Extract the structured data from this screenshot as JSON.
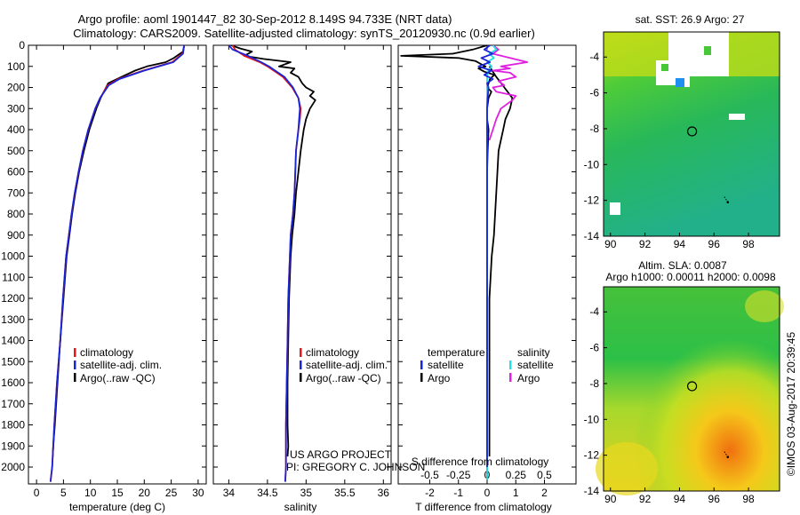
{
  "header": {
    "title_line1": "Argo profile: aoml 1901447_82 30-Sep-2012 8.149S 94.733E (NRT data)",
    "title_line2": "Climatology: CARS2009. Satellite-adjusted climatology: synTS_20120930.nc (0.9d earlier)"
  },
  "colors": {
    "climatology": "#e8161a",
    "satellite_adj": "#1a24d8",
    "argo": "#000000",
    "temp_satellite": "#1a24d8",
    "sal_satellite": "#22e0e8",
    "sal_argo": "#e020e0"
  },
  "depth_axis": {
    "ticks": [
      0,
      100,
      200,
      300,
      400,
      500,
      600,
      700,
      800,
      900,
      1000,
      1100,
      1200,
      1300,
      1400,
      1500,
      1600,
      1700,
      1800,
      1900,
      2000
    ],
    "ylim": [
      0,
      2080
    ]
  },
  "legend": {
    "climatology": "climatology",
    "satellite_adj": "satellite-adj. clim.",
    "argo": "Argo(..raw -QC)",
    "diff_temp_header": "temperature",
    "diff_sal_header": "salinity",
    "diff_satellite": "satellite",
    "diff_argo": "Argo"
  },
  "credits": {
    "line1": "US ARGO PROJECT",
    "line2": "PI: GREGORY C. JOHNSON",
    "imos": "©IMOS 03-Aug-2017 20:39:45"
  },
  "chart_data": [
    {
      "id": "temperature",
      "type": "line",
      "xlabel": "temperature (deg C)",
      "ylabel": "",
      "xlim": [
        -1.5,
        31.5
      ],
      "ylim": [
        0,
        2080
      ],
      "xticks": [
        0,
        5,
        10,
        15,
        20,
        25,
        30
      ],
      "series": [
        {
          "name": "climatology",
          "color_key": "climatology",
          "depth": [
            0,
            40,
            80,
            120,
            160,
            190,
            250,
            300,
            400,
            500,
            600,
            700,
            800,
            900,
            1000,
            1200,
            1400,
            1600,
            1800,
            2000,
            2070
          ],
          "values": [
            27.4,
            27.1,
            25.2,
            19.8,
            15.2,
            13.2,
            11.8,
            10.9,
            9.6,
            8.6,
            7.8,
            7.1,
            6.5,
            6.0,
            5.5,
            4.9,
            4.4,
            3.8,
            3.3,
            2.9,
            2.6
          ]
        },
        {
          "name": "satellite-adj. clim.",
          "color_key": "satellite_adj",
          "depth": [
            0,
            40,
            80,
            120,
            160,
            190,
            250,
            300,
            400,
            500,
            600,
            700,
            800,
            900,
            1000,
            1200,
            1400,
            1600,
            1800,
            2000,
            2070
          ],
          "values": [
            27.4,
            27.2,
            25.4,
            20.0,
            15.4,
            13.4,
            11.8,
            10.9,
            9.6,
            8.6,
            7.8,
            7.1,
            6.5,
            6.0,
            5.5,
            4.9,
            4.4,
            3.8,
            3.3,
            2.9,
            2.6
          ]
        },
        {
          "name": "Argo(..raw -QC)",
          "color_key": "argo",
          "depth": [
            0,
            30,
            60,
            80,
            100,
            120,
            150,
            180,
            250,
            300,
            400,
            500,
            600,
            700,
            800,
            900,
            1000,
            1200,
            1400,
            1600,
            1800,
            1900,
            1950
          ],
          "values": [
            27.4,
            27.2,
            25.5,
            24.0,
            20.5,
            18.3,
            15.8,
            13.3,
            11.9,
            11.1,
            9.8,
            8.8,
            7.9,
            7.2,
            6.6,
            6.1,
            5.6,
            5.0,
            4.4,
            3.9,
            3.4,
            3.1,
            3.0
          ]
        }
      ]
    },
    {
      "id": "salinity",
      "type": "line",
      "xlabel": "salinity",
      "ylabel": "",
      "xlim": [
        33.8,
        36.1
      ],
      "ylim": [
        0,
        2080
      ],
      "xticks": [
        34,
        34.5,
        35,
        35.5,
        36
      ],
      "xtick_labels": [
        "34",
        "34.5",
        "35",
        "35.5",
        "36"
      ],
      "series": [
        {
          "name": "climatology",
          "color_key": "climatology",
          "depth": [
            0,
            20,
            50,
            80,
            100,
            150,
            200,
            250,
            300,
            350,
            400,
            500,
            600,
            700,
            800,
            900,
            1000,
            1200,
            1400,
            1600,
            1800,
            2000,
            2070
          ],
          "values": [
            34.05,
            34.08,
            34.2,
            34.4,
            34.5,
            34.7,
            34.82,
            34.9,
            34.93,
            34.92,
            34.9,
            34.87,
            34.86,
            34.85,
            34.83,
            34.8,
            34.79,
            34.77,
            34.76,
            34.75,
            34.74,
            34.74,
            34.73
          ]
        },
        {
          "name": "satellite-adj. clim.",
          "color_key": "satellite_adj",
          "depth": [
            0,
            20,
            50,
            80,
            100,
            150,
            200,
            250,
            300,
            350,
            400,
            500,
            600,
            700,
            800,
            900,
            1000,
            1200,
            1400,
            1600,
            1800,
            2000,
            2070
          ],
          "values": [
            34.0,
            34.05,
            34.25,
            34.42,
            34.52,
            34.72,
            34.83,
            34.9,
            34.92,
            34.91,
            34.9,
            34.87,
            34.86,
            34.85,
            34.83,
            34.8,
            34.79,
            34.77,
            34.76,
            34.75,
            34.74,
            34.74,
            34.73
          ]
        },
        {
          "name": "Argo(..raw -QC)",
          "color_key": "argo",
          "depth": [
            0,
            15,
            30,
            50,
            65,
            80,
            100,
            110,
            130,
            150,
            180,
            200,
            220,
            240,
            260,
            300,
            350,
            400,
            500,
            600,
            700,
            800,
            900,
            1000,
            1200,
            1400,
            1600,
            1800,
            1900,
            1950
          ],
          "values": [
            34.03,
            34.15,
            34.3,
            34.2,
            34.45,
            34.8,
            34.65,
            34.85,
            34.8,
            34.9,
            34.95,
            35.0,
            35.1,
            35.05,
            35.12,
            35.05,
            35.0,
            34.97,
            34.93,
            34.9,
            34.87,
            34.85,
            34.82,
            34.8,
            34.78,
            34.77,
            34.76,
            34.76,
            34.77,
            34.76
          ]
        }
      ]
    },
    {
      "id": "difference",
      "type": "line",
      "xlabel": "T difference from climatology",
      "x2label": "S difference from climatology",
      "ylabel": "",
      "xlim": [
        -3.1,
        3.1
      ],
      "x2lim": [
        -0.775,
        0.775
      ],
      "ylim": [
        0,
        2080
      ],
      "xticks": [
        -2,
        -1,
        0,
        1,
        2
      ],
      "x2ticks": [
        -0.5,
        -0.25,
        0,
        0.25,
        0.5
      ],
      "x2tick_labels": [
        "-0.5",
        "-0.25",
        "0",
        "0.25",
        "0.5"
      ],
      "series": [
        {
          "name": "temperature satellite",
          "color_key": "temp_satellite",
          "axis": "T",
          "depth": [
            0,
            20,
            40,
            60,
            80,
            100,
            120,
            140,
            160,
            180,
            200,
            250,
            300,
            400,
            600,
            800,
            1000,
            1200,
            1500,
            1800,
            2000
          ],
          "values": [
            0.1,
            -0.1,
            0.2,
            -0.2,
            0.1,
            -0.3,
            0.15,
            -0.1,
            0.2,
            0.0,
            0.05,
            0.02,
            0.0,
            0.0,
            0.0,
            0.0,
            0.0,
            0.0,
            0.0,
            0.0,
            0.0
          ]
        },
        {
          "name": "temperature Argo",
          "color_key": "argo",
          "axis": "T",
          "depth": [
            0,
            20,
            40,
            50,
            60,
            75,
            90,
            100,
            110,
            125,
            140,
            160,
            180,
            200,
            220,
            250,
            300,
            350,
            400,
            500,
            600,
            700,
            800,
            900,
            1000,
            1200,
            1400,
            1600,
            1800,
            2000,
            2050
          ],
          "values": [
            0.0,
            -0.5,
            -1.2,
            -3.0,
            -1.0,
            -0.4,
            -0.2,
            -0.05,
            -0.3,
            -0.1,
            0.25,
            0.1,
            0.05,
            0.0,
            0.15,
            0.05,
            0.0,
            0.0,
            0.05,
            0.02,
            0.0,
            0.0,
            0.0,
            0.0,
            0.0,
            0.0,
            0.0,
            0.0,
            0.0,
            0.0,
            0.0
          ]
        },
        {
          "name": "salinity satellite",
          "color_key": "sal_satellite",
          "axis": "S",
          "depth": [
            0,
            20,
            40,
            60,
            80,
            100,
            120,
            150,
            200,
            300,
            500,
            800,
            1000,
            1500,
            2000,
            2060
          ],
          "values": [
            0.05,
            0.08,
            0.02,
            0.06,
            0.0,
            0.04,
            0.01,
            0.0,
            0.0,
            0.0,
            0.0,
            0.0,
            0.0,
            0.0,
            0.0,
            0.0
          ]
        },
        {
          "name": "salinity Argo",
          "color_key": "sal_argo",
          "axis": "S",
          "depth": [
            0,
            20,
            40,
            60,
            80,
            100,
            110,
            120,
            130,
            150,
            170,
            190,
            200,
            220,
            240,
            260,
            300,
            350,
            400,
            450
          ],
          "values": [
            0.05,
            0.1,
            0.05,
            0.2,
            0.35,
            0.12,
            0.2,
            0.05,
            0.2,
            0.25,
            0.1,
            0.15,
            0.05,
            0.08,
            0.25,
            0.22,
            0.12,
            0.08,
            0.05,
            0.02
          ]
        },
        {
          "name": "salinity Argo deep",
          "color_key": "argo",
          "axis": "S",
          "depth": [
            100,
            150,
            200,
            250,
            300,
            350,
            400,
            500,
            600,
            700,
            800,
            900,
            1000,
            1200,
            1400,
            1600,
            1800,
            1900,
            1950
          ],
          "values": [
            0.02,
            0.08,
            0.15,
            0.22,
            0.2,
            0.16,
            0.14,
            0.1,
            0.09,
            0.08,
            0.07,
            0.06,
            0.04,
            0.02,
            0.02,
            0.02,
            0.02,
            0.02,
            0.02
          ]
        }
      ]
    },
    {
      "id": "map_sst",
      "type": "heatmap",
      "title": "sat. SST: 26.9 Argo: 27",
      "xticks": [
        90,
        92,
        94,
        96,
        98
      ],
      "xlim": [
        89.6,
        99.8
      ],
      "ylim": [
        -14.0,
        -2.6
      ],
      "yticks": [
        -4,
        -6,
        -8,
        -10,
        -12,
        -14
      ],
      "marker": {
        "lon": 94.73,
        "lat": -8.15
      },
      "trajectory": [
        {
          "lon": 96.6,
          "lat": -11.8
        },
        {
          "lon": 96.8,
          "lat": -12.1
        }
      ]
    },
    {
      "id": "map_sla",
      "type": "heatmap",
      "title": "Altim. SLA: 0.0087",
      "subtitle": "Argo h1000: 0.00011 h2000: 0.0098",
      "xticks": [
        90,
        92,
        94,
        96,
        98
      ],
      "xlim": [
        89.6,
        99.8
      ],
      "ylim": [
        -14.0,
        -2.6
      ],
      "yticks": [
        -4,
        -6,
        -8,
        -10,
        -12,
        -14
      ],
      "marker": {
        "lon": 94.73,
        "lat": -8.15
      },
      "trajectory": [
        {
          "lon": 96.6,
          "lat": -11.8
        },
        {
          "lon": 96.8,
          "lat": -12.1
        }
      ]
    }
  ]
}
